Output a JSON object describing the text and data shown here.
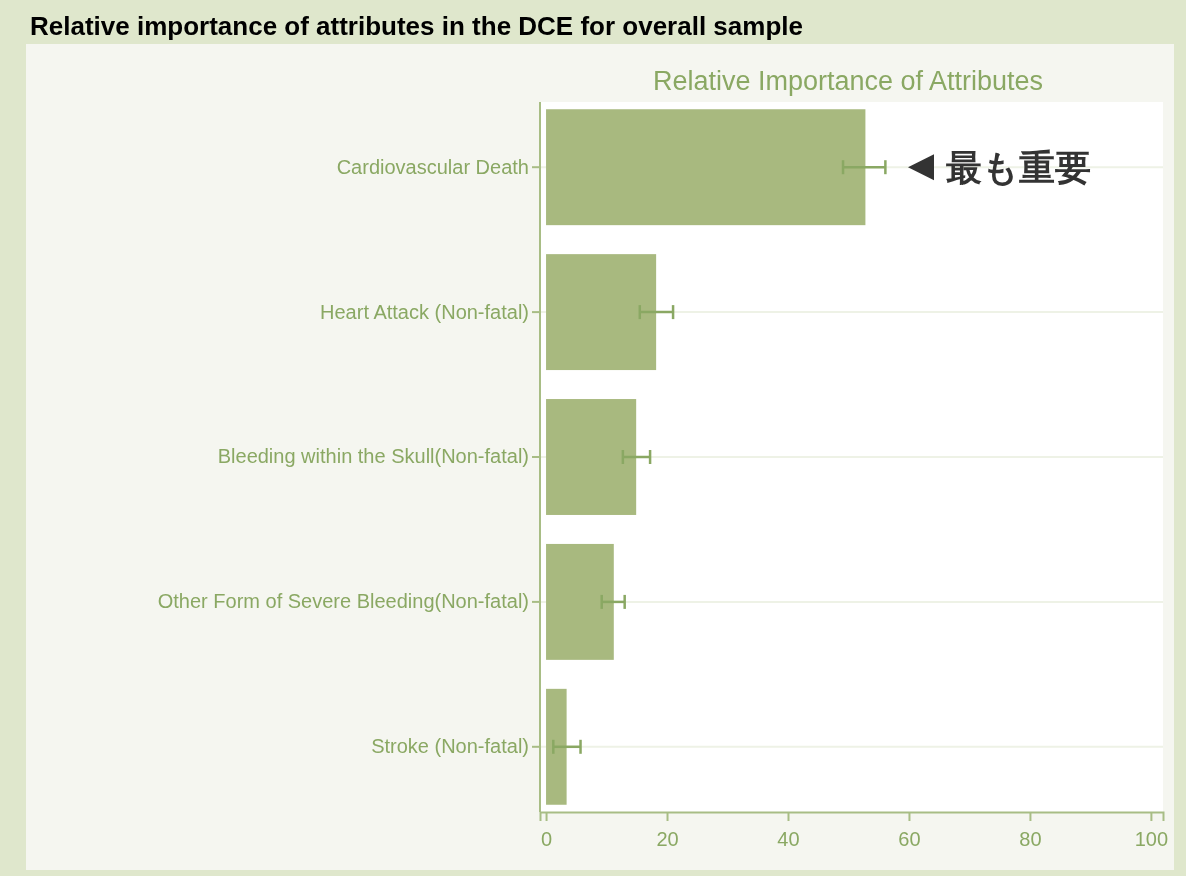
{
  "chart_data": {
    "type": "bar",
    "orientation": "horizontal",
    "title": "Relative importance of attributes in the DCE for overall sample",
    "subtitle": "Relative Importance of Attributes",
    "categories": [
      "Cardiovascular Death",
      "Heart Attack (Non-fatal)",
      "Bleeding within the Skull(Non-fatal)",
      "Other Form of Severe Bleeding(Non-fatal)",
      "Stroke (Non-fatal)"
    ],
    "values": [
      52.8,
      18.2,
      14.9,
      11.2,
      3.4
    ],
    "errors": [
      [
        49.1,
        56.1
      ],
      [
        15.5,
        21.0
      ],
      [
        12.7,
        17.2
      ],
      [
        9.2,
        13.0
      ],
      [
        1.2,
        5.7
      ]
    ],
    "color": "#a8b97f",
    "xlim": [
      -1,
      102
    ],
    "xticks": [
      0,
      20,
      40,
      60,
      80,
      100
    ],
    "grid": "y",
    "annotations": [
      "最も重要"
    ]
  }
}
